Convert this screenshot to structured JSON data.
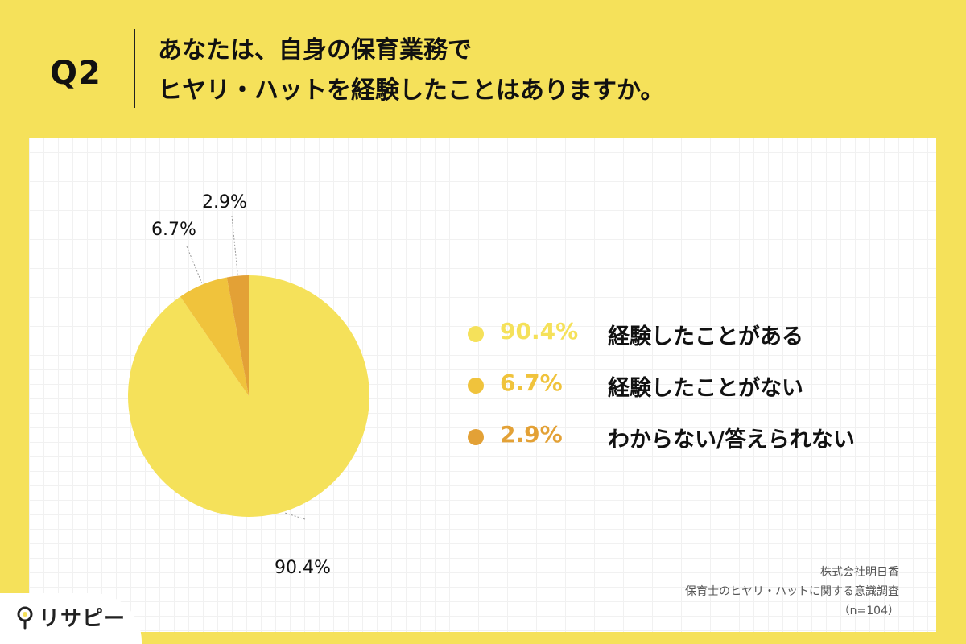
{
  "question": {
    "label": "Q2",
    "line1": "あなたは、自身の保育業務で",
    "line2": "ヒヤリ・ハットを経験したことはありますか。"
  },
  "chart_data": {
    "type": "pie",
    "slices": [
      {
        "label": "経験したことがある",
        "value": 90.4,
        "value_text": "90.4%",
        "color": "#f5e15a"
      },
      {
        "label": "経験したことがない",
        "value": 6.7,
        "value_text": "6.7%",
        "color": "#f0c33c"
      },
      {
        "label": "わからない/答えられない",
        "value": 2.9,
        "value_text": "2.9%",
        "color": "#e3a136"
      }
    ],
    "start_angle": "12 o'clock",
    "direction": "clockwise",
    "legend_position": "right"
  },
  "credit": {
    "line1": "株式会社明日香",
    "line2": "保育士のヒヤリ・ハットに関する意識調査",
    "line3": "（n=104）"
  },
  "logo": {
    "text": "リサピー",
    "icon": "magnifier-pin-icon"
  }
}
